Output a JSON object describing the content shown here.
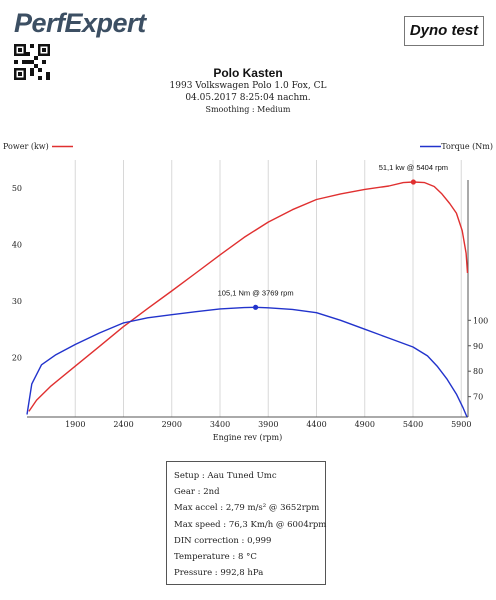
{
  "header": {
    "brand": "PerfExpert",
    "report_type": "Dyno test",
    "title": "Polo Kasten",
    "vehicle": "1993 Volkswagen Polo 1.0 Fox, CL",
    "datetime": "04.05.2017 8:25:04 nachm.",
    "smoothing": "Smoothing : Medium"
  },
  "colors": {
    "power": "#e03030",
    "torque": "#2233cc",
    "grid": "#d8d8d8",
    "axis": "#555555"
  },
  "chart_data": {
    "type": "line",
    "xlabel": "Engine rev (rpm)",
    "x_ticks": [
      1900,
      2400,
      2900,
      3400,
      3900,
      4400,
      4900,
      5400,
      5900
    ],
    "xlim": [
      1400,
      5970
    ],
    "y_left": {
      "label": "Power (kw)",
      "ticks": [
        20,
        30,
        40,
        50
      ],
      "ylim": [
        9.5,
        55
      ]
    },
    "y_right": {
      "label": "Torque (Nm)",
      "ticks": [
        70,
        80,
        90,
        100
      ],
      "ylim": [
        62,
        163
      ]
    },
    "series": [
      {
        "name": "Power (kw)",
        "axis": "left",
        "x": [
          1420,
          1500,
          1650,
          1900,
          2150,
          2400,
          2650,
          2900,
          3150,
          3400,
          3650,
          3900,
          4150,
          4400,
          4650,
          4900,
          5150,
          5300,
          5404,
          5520,
          5620,
          5700,
          5780,
          5850,
          5910,
          5950,
          5965
        ],
        "y": [
          10.5,
          12.5,
          15.0,
          18.5,
          22.0,
          25.5,
          28.7,
          31.8,
          35.0,
          38.2,
          41.3,
          44.0,
          46.2,
          48.0,
          49.0,
          49.8,
          50.4,
          51.0,
          51.1,
          51.0,
          50.3,
          49.0,
          47.3,
          45.6,
          42.5,
          38.5,
          35.0
        ]
      },
      {
        "name": "Torque (Nm)",
        "axis": "right",
        "x": [
          1400,
          1450,
          1550,
          1700,
          1900,
          2150,
          2400,
          2650,
          2900,
          3150,
          3400,
          3650,
          3769,
          3900,
          4150,
          4400,
          4650,
          4900,
          5150,
          5400,
          5550,
          5650,
          5750,
          5850,
          5920,
          5960
        ],
        "y": [
          63.0,
          75.0,
          82.5,
          86.5,
          90.5,
          95.0,
          99.0,
          101.0,
          102.2,
          103.4,
          104.5,
          105.0,
          105.1,
          104.9,
          104.3,
          103.0,
          100.0,
          96.5,
          93.0,
          89.5,
          86.0,
          82.0,
          77.0,
          71.0,
          65.5,
          62.0
        ]
      }
    ],
    "annotations": [
      {
        "label": "51,1 kw @ 5404 rpm",
        "x": 5404,
        "y": 51.1,
        "series": "Power (kw)"
      },
      {
        "label": "105,1 Nm @ 3769 rpm",
        "x": 3769,
        "y": 105.1,
        "series": "Torque (Nm)"
      }
    ]
  },
  "info": {
    "lines": [
      "Setup : Aau Tuned Umc",
      "Gear : 2nd",
      "Max accel : 2,79 m/s² @ 3652rpm",
      "Max speed : 76,3 Km/h @ 6004rpm",
      "DIN correction : 0,999",
      "Temperature : 8 °C",
      "Pressure : 992,8 hPa"
    ]
  }
}
